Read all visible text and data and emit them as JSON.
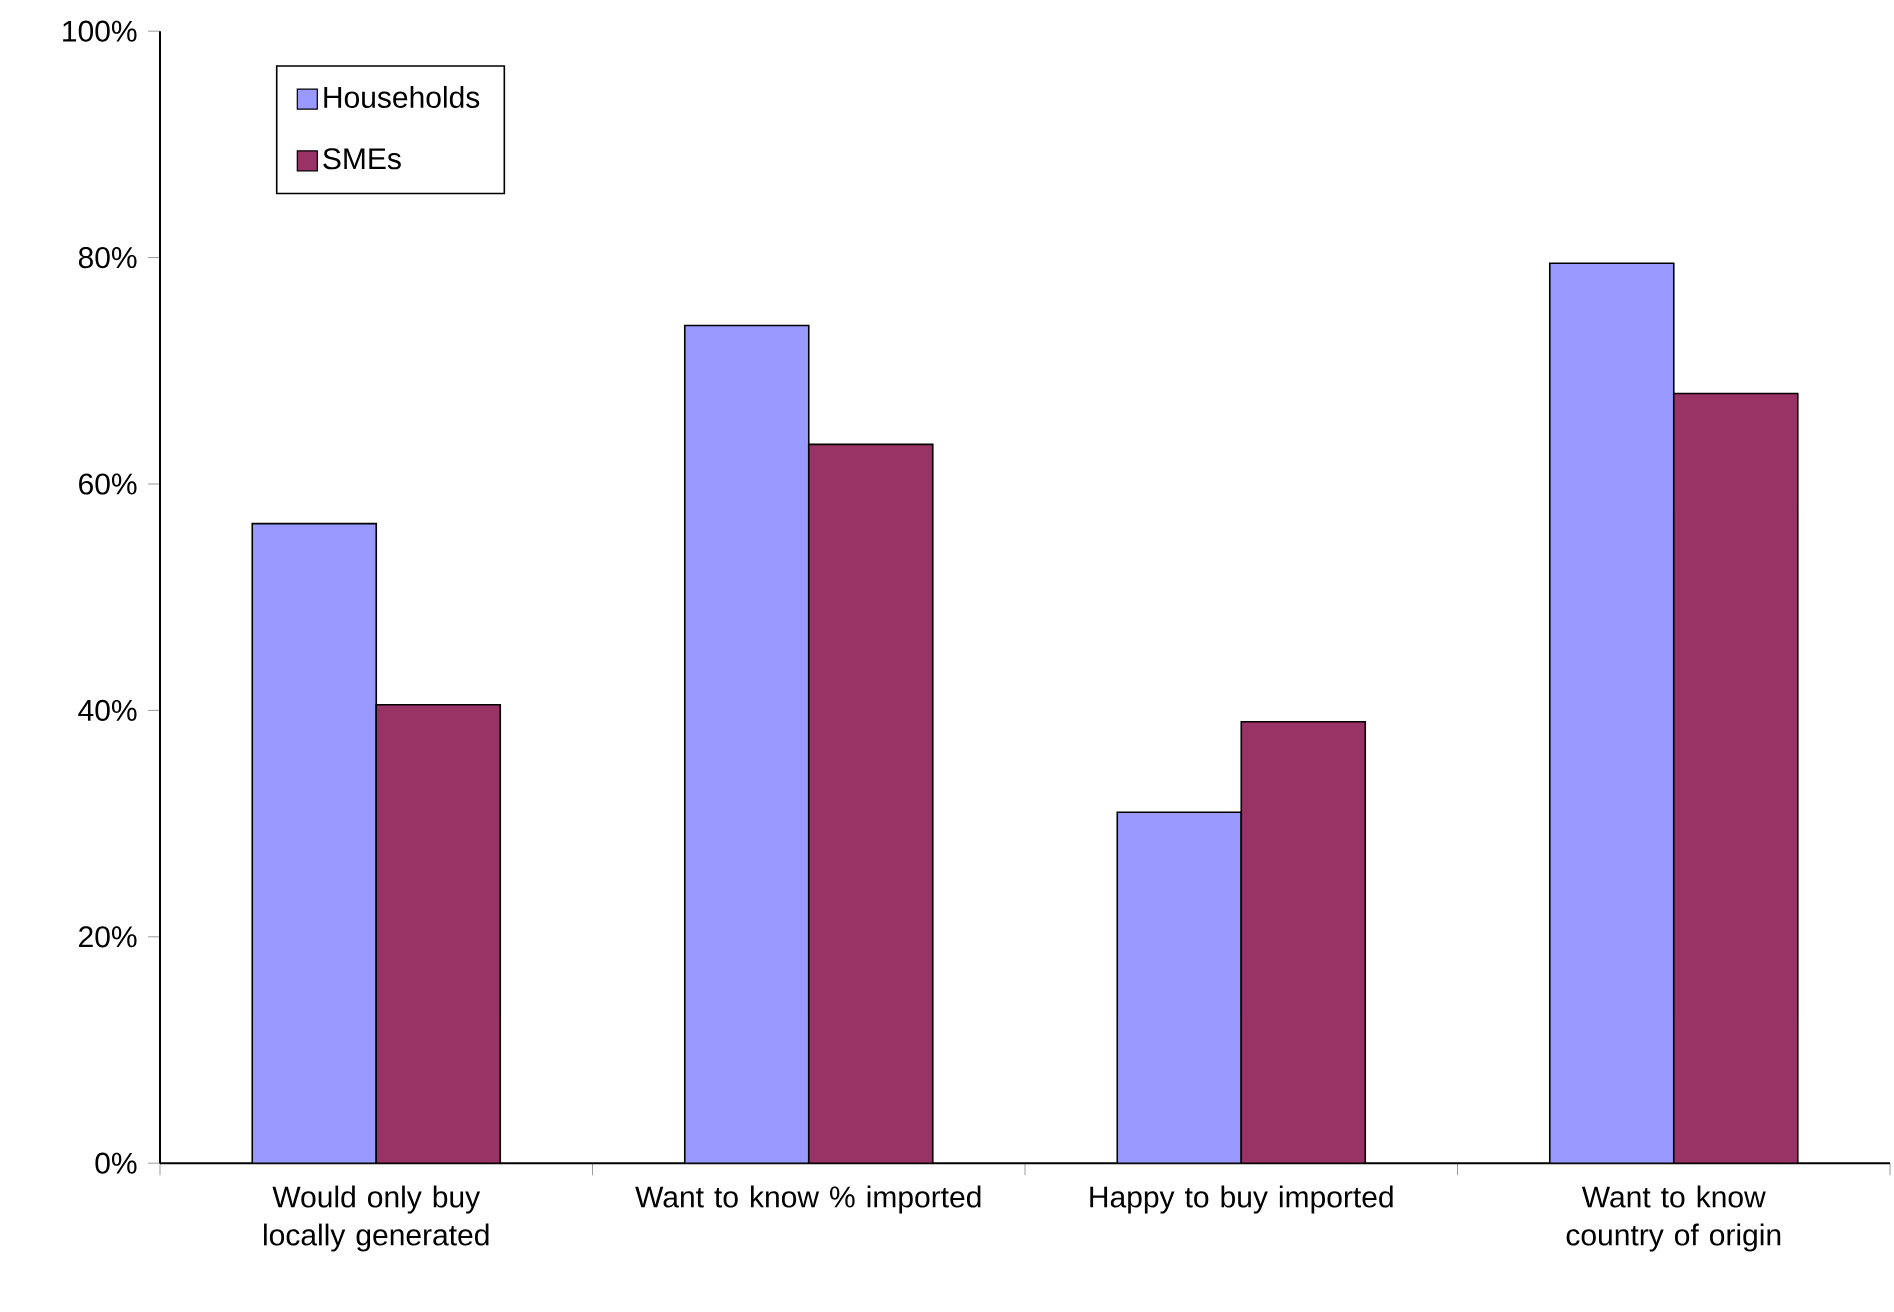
{
  "chart_data": {
    "type": "bar",
    "categories": [
      "Would only buy locally generated",
      "Want to know % imported",
      "Happy to buy imported",
      "Want to know country of origin"
    ],
    "series": [
      {
        "name": "Households",
        "color": "#9999ff",
        "values": [
          56.5,
          74,
          31,
          79.5
        ]
      },
      {
        "name": "SMEs",
        "color": "#993366",
        "values": [
          40.5,
          63.5,
          39,
          68
        ]
      }
    ],
    "ylim": [
      0,
      100
    ],
    "yticks": [
      {
        "value": 0,
        "label": "0%"
      },
      {
        "value": 20,
        "label": "20%"
      },
      {
        "value": 40,
        "label": "40%"
      },
      {
        "value": 60,
        "label": "60%"
      },
      {
        "value": 80,
        "label": "80%"
      },
      {
        "value": 100,
        "label": "100%"
      }
    ],
    "grid": false,
    "legend": "top left"
  }
}
